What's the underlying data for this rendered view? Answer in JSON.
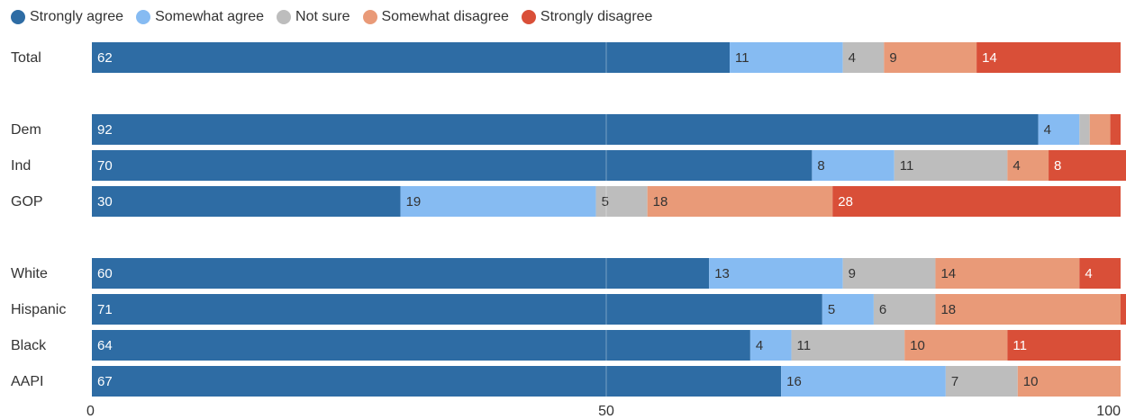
{
  "chart_data": {
    "type": "bar",
    "orientation": "horizontal",
    "stacked": true,
    "xlim": [
      0,
      100
    ],
    "xticks": [
      "0",
      "50",
      "100"
    ],
    "grid": "vertical gridline at 50",
    "legend_position": "top-left",
    "series": [
      {
        "name": "Strongly agree",
        "color": "#2e6ca4"
      },
      {
        "name": "Somewhat agree",
        "color": "#86bbf2"
      },
      {
        "name": "Not sure",
        "color": "#bdbdbd"
      },
      {
        "name": "Somewhat disagree",
        "color": "#e99a78"
      },
      {
        "name": "Strongly disagree",
        "color": "#d94f38"
      }
    ],
    "groups": [
      {
        "rows": [
          {
            "label": "Total",
            "values": [
              62,
              11,
              4,
              9,
              14
            ]
          }
        ]
      },
      {
        "rows": [
          {
            "label": "Dem",
            "values": [
              92,
              4,
              1,
              2,
              1
            ]
          },
          {
            "label": "Ind",
            "values": [
              70,
              8,
              11,
              4,
              8
            ]
          },
          {
            "label": "GOP",
            "values": [
              30,
              19,
              5,
              18,
              28
            ]
          }
        ]
      },
      {
        "rows": [
          {
            "label": "White",
            "values": [
              60,
              13,
              9,
              14,
              4
            ]
          },
          {
            "label": "Hispanic",
            "values": [
              71,
              5,
              6,
              18,
              1
            ]
          },
          {
            "label": "Black",
            "values": [
              64,
              4,
              11,
              10,
              11
            ]
          },
          {
            "label": "AAPI",
            "values": [
              67,
              16,
              7,
              10,
              0
            ]
          }
        ]
      }
    ]
  }
}
